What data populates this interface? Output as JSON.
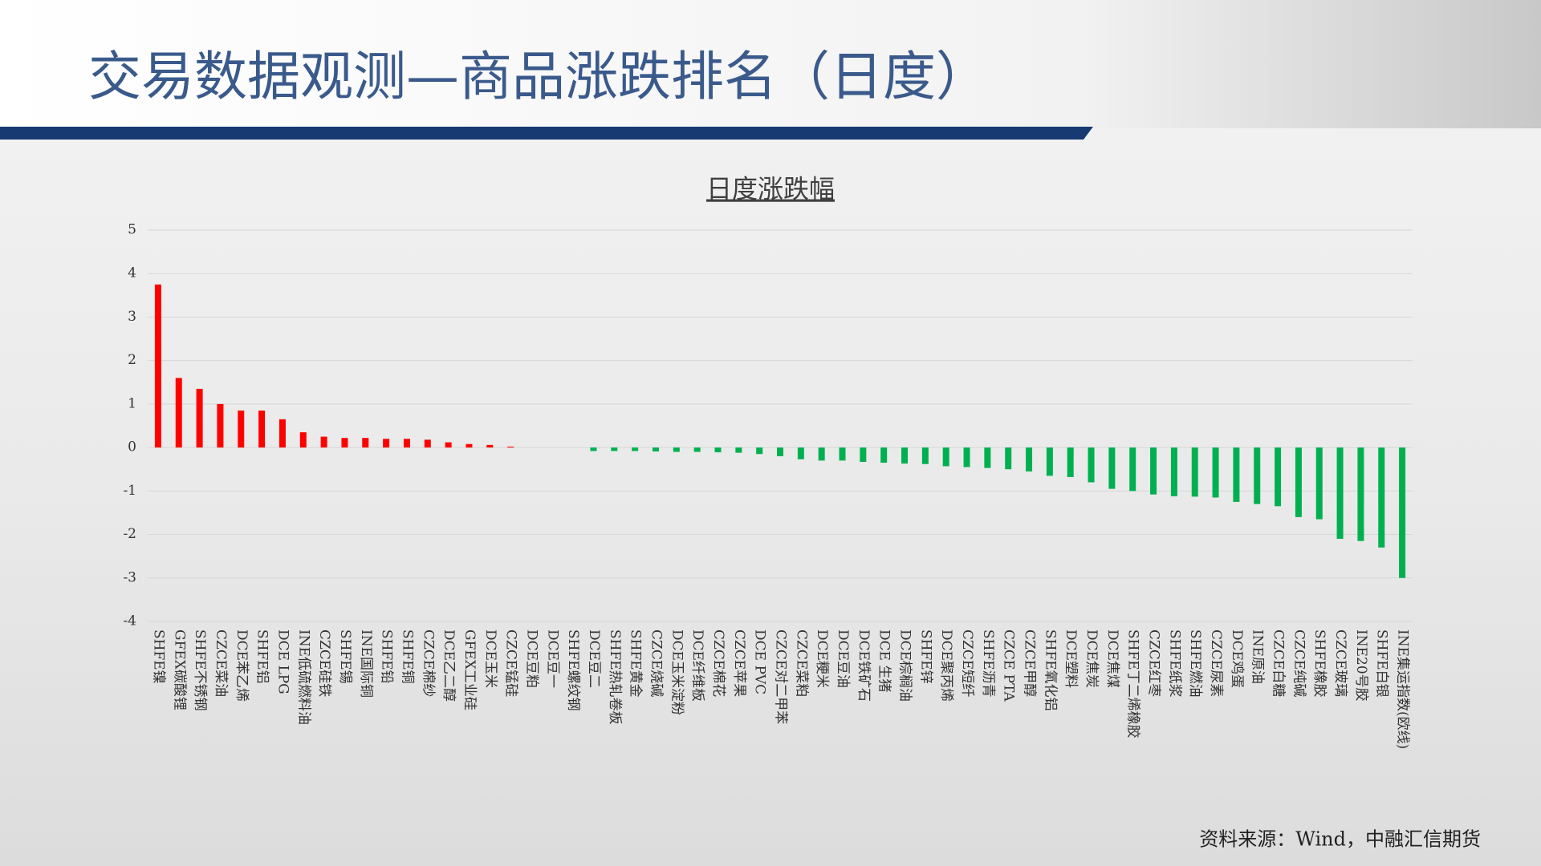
{
  "header": {
    "title": "交易数据观测—商品涨跌排名（日度）"
  },
  "chart_data": {
    "type": "bar",
    "title": "日度涨跌幅",
    "categories": [
      "SHFE镍",
      "GFEX碳酸锂",
      "SHFE不锈钢",
      "CZCE菜油",
      "DCE苯乙烯",
      "SHFE铝",
      "DCE LPG",
      "INE低硫燃料油",
      "CZCE硅铁",
      "SHFE锡",
      "INE国际铜",
      "SHFE铅",
      "SHFE铜",
      "CZCE棉纱",
      "DCE乙二醇",
      "GFEX工业硅",
      "DCE玉米",
      "CZCE锰硅",
      "DCE豆粕",
      "DCE豆一",
      "SHFE螺纹钢",
      "DCE豆二",
      "SHFE热轧卷板",
      "SHFE黄金",
      "CZCE烧碱",
      "DCE玉米淀粉",
      "DCE纤维板",
      "CZCE棉花",
      "CZCE苹果",
      "DCE PVC",
      "CZCE对二甲苯",
      "CZCE菜粕",
      "DCE粳米",
      "DCE豆油",
      "DCE铁矿石",
      "DCE 生猪",
      "DCE棕榈油",
      "SHFE锌",
      "DCE聚丙烯",
      "CZCE短纤",
      "SHFE沥青",
      "CZCE PTA",
      "CZCE甲醇",
      "SHFE氧化铝",
      "DCE塑料",
      "DCE焦炭",
      "DCE焦煤",
      "SHFE丁二烯橡胶",
      "CZCE红枣",
      "SHFE纸浆",
      "SHFE燃油",
      "CZCE尿素",
      "DCE鸡蛋",
      "INE原油",
      "CZCE白糖",
      "CZCE纯碱",
      "SHFE橡胶",
      "CZCE玻璃",
      "INE20号胶",
      "SHFE白银",
      "INE集运指数(欧线)"
    ],
    "values": [
      3.75,
      1.6,
      1.35,
      1.0,
      0.85,
      0.85,
      0.65,
      0.35,
      0.25,
      0.22,
      0.22,
      0.2,
      0.2,
      0.18,
      0.12,
      0.08,
      0.06,
      0.02,
      0,
      0,
      0,
      -0.08,
      -0.08,
      -0.08,
      -0.09,
      -0.1,
      -0.1,
      -0.11,
      -0.12,
      -0.15,
      -0.2,
      -0.27,
      -0.3,
      -0.3,
      -0.33,
      -0.35,
      -0.37,
      -0.38,
      -0.43,
      -0.45,
      -0.47,
      -0.5,
      -0.55,
      -0.65,
      -0.68,
      -0.8,
      -0.95,
      -1.0,
      -1.08,
      -1.12,
      -1.13,
      -1.15,
      -1.25,
      -1.3,
      -1.35,
      -1.6,
      -1.65,
      -2.1,
      -2.15,
      -2.3,
      -3.0
    ],
    "positive_color": "#ff0000",
    "negative_color": "#00b050",
    "ylim": [
      -4,
      5
    ],
    "yticks": [
      -4,
      -3,
      -2,
      -1,
      0,
      1,
      2,
      3,
      4,
      5
    ],
    "grid": true
  },
  "footer": {
    "source": "资料来源：Wind，中融汇信期货"
  }
}
